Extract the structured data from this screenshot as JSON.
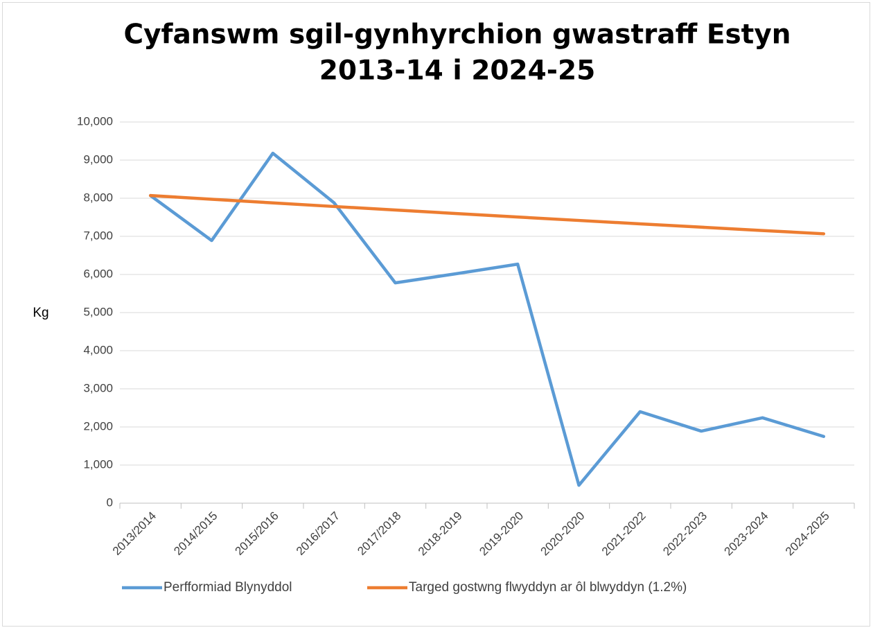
{
  "chart_data": {
    "type": "line",
    "title": [
      "Cyfanswm sgil-gynhyrchion gwastraff Estyn",
      "2013-14 i 2024-25"
    ],
    "y_label": "Kg",
    "categories": [
      "2013/2014",
      "2014/2015",
      "2015/2016",
      "2016/2017",
      "2017/2018",
      "2018-2019",
      "2019-2020",
      "2020-2020",
      "2021-2022",
      "2022-2023",
      "2023-2024",
      "2024-2025"
    ],
    "series": [
      {
        "name": "Perfformiad Blynyddol",
        "color": "#5b9bd5",
        "values": [
          8070,
          6890,
          9180,
          7880,
          5780,
          6020,
          6270,
          470,
          2400,
          1890,
          2240,
          1750
        ]
      },
      {
        "name": "Targed gostwng flwyddyn ar ôl blwyddyn (1.2%)",
        "color": "#ed7d31",
        "values": [
          8070,
          7973,
          7878,
          7783,
          7690,
          7598,
          7507,
          7417,
          7328,
          7240,
          7153,
          7067
        ]
      }
    ],
    "ylim": [
      0,
      10000
    ],
    "yticks": [
      0,
      {
        "value": 1000,
        "label": "1,000"
      },
      {
        "value": 2000,
        "label": "2,000"
      },
      {
        "value": 3000,
        "label": "3,000"
      },
      {
        "value": 4000,
        "label": "4,000"
      },
      {
        "value": 5000,
        "label": "5,000"
      },
      {
        "value": 6000,
        "label": "6,000"
      },
      {
        "value": 7000,
        "label": "7,000"
      },
      {
        "value": 8000,
        "label": "8,000"
      },
      {
        "value": 9000,
        "label": "9,000"
      },
      {
        "value": 10000,
        "label": "10,000"
      }
    ],
    "grid": true,
    "legend": "bottom"
  }
}
